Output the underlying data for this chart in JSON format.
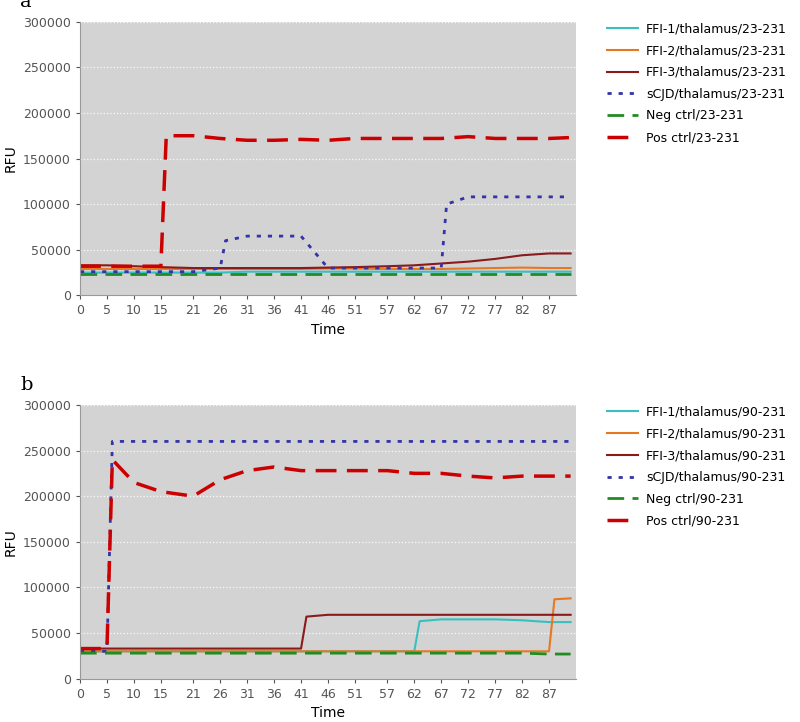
{
  "panel_a": {
    "title_label": "a",
    "xlabel": "Time",
    "ylabel": "RFU",
    "xlim": [
      0,
      92
    ],
    "ylim": [
      0,
      300000
    ],
    "yticks": [
      0,
      50000,
      100000,
      150000,
      200000,
      250000,
      300000
    ],
    "xtick_labels": [
      "0",
      "5",
      "10",
      "15",
      "21",
      "26",
      "31",
      "36",
      "41",
      "46",
      "51",
      "57",
      "62",
      "67",
      "72",
      "77",
      "82",
      "87"
    ],
    "xtick_positions": [
      0,
      5,
      10,
      15,
      21,
      26,
      31,
      36,
      41,
      46,
      51,
      57,
      62,
      67,
      72,
      77,
      82,
      87
    ],
    "series": [
      {
        "label": "FFI-1/thalamus/23-231",
        "color": "#3ABFBF",
        "linestyle": "-",
        "linewidth": 1.5,
        "x": [
          0,
          5,
          10,
          15,
          21,
          26,
          31,
          36,
          41,
          46,
          51,
          57,
          62,
          67,
          72,
          77,
          82,
          87,
          91
        ],
        "y": [
          25000,
          25000,
          25000,
          25000,
          25000,
          25000,
          26000,
          26000,
          26000,
          26000,
          26000,
          26000,
          26000,
          26000,
          26000,
          26000,
          26000,
          26000,
          26000
        ]
      },
      {
        "label": "FFI-2/thalamus/23-231",
        "color": "#E87722",
        "linestyle": "-",
        "linewidth": 1.5,
        "x": [
          0,
          5,
          10,
          15,
          21,
          26,
          31,
          36,
          41,
          46,
          51,
          57,
          62,
          67,
          72,
          77,
          82,
          87,
          91
        ],
        "y": [
          29000,
          29000,
          29000,
          29000,
          29000,
          29000,
          29000,
          29000,
          29000,
          29500,
          29500,
          29000,
          29000,
          29000,
          29500,
          30000,
          30500,
          30000,
          30000
        ]
      },
      {
        "label": "FFI-3/thalamus/23-231",
        "color": "#8B1A1A",
        "linestyle": "-",
        "linewidth": 1.5,
        "x": [
          0,
          5,
          10,
          15,
          21,
          26,
          31,
          36,
          41,
          46,
          51,
          57,
          62,
          67,
          72,
          77,
          82,
          87,
          91
        ],
        "y": [
          33000,
          33000,
          32000,
          31000,
          30000,
          30000,
          30000,
          30000,
          30000,
          30500,
          31000,
          32000,
          33000,
          35000,
          37000,
          40000,
          44000,
          46000,
          46000
        ]
      },
      {
        "label": "sCJD/thalamus/23-231",
        "color": "#3333AA",
        "linestyle": ":",
        "linewidth": 2.0,
        "x": [
          0,
          5,
          10,
          15,
          21,
          26,
          27,
          31,
          36,
          41,
          46,
          47,
          51,
          57,
          62,
          67,
          68,
          72,
          77,
          82,
          87,
          91
        ],
        "y": [
          26000,
          26000,
          26000,
          26000,
          26000,
          30000,
          60000,
          65000,
          65000,
          65000,
          30000,
          30000,
          30000,
          30000,
          30000,
          30000,
          100000,
          108000,
          108000,
          108000,
          108000,
          108000
        ]
      },
      {
        "label": "Neg ctrl/23-231",
        "color": "#228B22",
        "linestyle": "--",
        "linewidth": 2.0,
        "x": [
          0,
          5,
          10,
          15,
          21,
          26,
          31,
          36,
          41,
          46,
          51,
          57,
          62,
          67,
          72,
          77,
          82,
          87,
          91
        ],
        "y": [
          24000,
          24000,
          24000,
          24000,
          24000,
          24000,
          24000,
          24000,
          24000,
          24000,
          24000,
          24000,
          24000,
          24000,
          24000,
          24000,
          24000,
          24000,
          24000
        ]
      },
      {
        "label": "Pos ctrl/23-231",
        "color": "#CC0000",
        "linestyle": "--",
        "linewidth": 2.5,
        "x": [
          0,
          5,
          10,
          15,
          16,
          21,
          26,
          31,
          36,
          41,
          46,
          51,
          57,
          62,
          67,
          72,
          77,
          82,
          87,
          91
        ],
        "y": [
          32000,
          32000,
          32000,
          32000,
          175000,
          175000,
          172000,
          170000,
          170000,
          171000,
          170000,
          172000,
          172000,
          172000,
          172000,
          174000,
          172000,
          172000,
          172000,
          173000
        ]
      }
    ]
  },
  "panel_b": {
    "title_label": "b",
    "xlabel": "Time",
    "ylabel": "RFU",
    "xlim": [
      0,
      92
    ],
    "ylim": [
      0,
      300000
    ],
    "yticks": [
      0,
      50000,
      100000,
      150000,
      200000,
      250000,
      300000
    ],
    "xtick_labels": [
      "0",
      "5",
      "10",
      "15",
      "21",
      "26",
      "31",
      "36",
      "41",
      "46",
      "51",
      "57",
      "62",
      "67",
      "72",
      "77",
      "82",
      "87"
    ],
    "xtick_positions": [
      0,
      5,
      10,
      15,
      21,
      26,
      31,
      36,
      41,
      46,
      51,
      57,
      62,
      67,
      72,
      77,
      82,
      87
    ],
    "series": [
      {
        "label": "FFI-1/thalamus/90-231",
        "color": "#3ABFBF",
        "linestyle": "-",
        "linewidth": 1.5,
        "x": [
          0,
          5,
          10,
          15,
          21,
          26,
          31,
          36,
          41,
          46,
          51,
          57,
          62,
          63,
          67,
          72,
          77,
          82,
          87,
          91
        ],
        "y": [
          30000,
          30000,
          30000,
          30000,
          30000,
          30000,
          30000,
          30000,
          30000,
          30000,
          30000,
          30000,
          30000,
          63000,
          65000,
          65000,
          65000,
          64000,
          62000,
          62000
        ]
      },
      {
        "label": "FFI-2/thalamus/90-231",
        "color": "#E87722",
        "linestyle": "-",
        "linewidth": 1.5,
        "x": [
          0,
          5,
          10,
          15,
          21,
          26,
          31,
          36,
          41,
          46,
          51,
          57,
          62,
          67,
          72,
          77,
          82,
          87,
          88,
          91
        ],
        "y": [
          30000,
          30000,
          30000,
          30000,
          30000,
          30000,
          30000,
          30000,
          30000,
          30000,
          30000,
          30000,
          30000,
          30000,
          30000,
          30000,
          30000,
          30000,
          87000,
          88000
        ]
      },
      {
        "label": "FFI-3/thalamus/90-231",
        "color": "#8B1A1A",
        "linestyle": "-",
        "linewidth": 1.5,
        "x": [
          0,
          5,
          10,
          15,
          21,
          26,
          31,
          36,
          41,
          42,
          46,
          51,
          57,
          62,
          67,
          72,
          77,
          82,
          87,
          91
        ],
        "y": [
          33000,
          33000,
          33000,
          33000,
          33000,
          33000,
          33000,
          33000,
          33000,
          68000,
          70000,
          70000,
          70000,
          70000,
          70000,
          70000,
          70000,
          70000,
          70000,
          70000
        ]
      },
      {
        "label": "sCJD/thalamus/90-231",
        "color": "#3333AA",
        "linestyle": ":",
        "linewidth": 2.0,
        "x": [
          0,
          5,
          6,
          10,
          15,
          21,
          26,
          31,
          36,
          41,
          46,
          51,
          57,
          62,
          67,
          72,
          77,
          82,
          87,
          91
        ],
        "y": [
          30000,
          30000,
          260000,
          260000,
          260000,
          260000,
          260000,
          260000,
          260000,
          260000,
          260000,
          260000,
          260000,
          260000,
          260000,
          260000,
          260000,
          260000,
          260000,
          260000
        ]
      },
      {
        "label": "Neg ctrl/90-231",
        "color": "#228B22",
        "linestyle": "--",
        "linewidth": 2.0,
        "x": [
          0,
          5,
          10,
          15,
          21,
          26,
          31,
          36,
          41,
          46,
          51,
          57,
          62,
          67,
          72,
          77,
          82,
          87,
          91
        ],
        "y": [
          28000,
          28000,
          28000,
          28000,
          28000,
          28000,
          28000,
          28000,
          28000,
          28000,
          28000,
          28000,
          28000,
          28000,
          28000,
          28000,
          28000,
          27000,
          27000
        ]
      },
      {
        "label": "Pos ctrl/90-231",
        "color": "#CC0000",
        "linestyle": "--",
        "linewidth": 2.5,
        "x": [
          0,
          5,
          6,
          10,
          15,
          21,
          26,
          31,
          36,
          41,
          46,
          51,
          57,
          62,
          67,
          72,
          77,
          82,
          87,
          91
        ],
        "y": [
          33000,
          33000,
          240000,
          215000,
          205000,
          200000,
          218000,
          228000,
          232000,
          228000,
          228000,
          228000,
          228000,
          225000,
          225000,
          222000,
          220000,
          222000,
          222000,
          222000
        ]
      }
    ]
  },
  "background_color": "#D3D3D3",
  "fig_bg": "#FFFFFF",
  "panel_label_fontsize": 14,
  "axis_label_fontsize": 10,
  "tick_label_fontsize": 9,
  "legend_fontsize": 9,
  "legend_handlelength": 2.5,
  "legend_labelspacing": 0.7
}
